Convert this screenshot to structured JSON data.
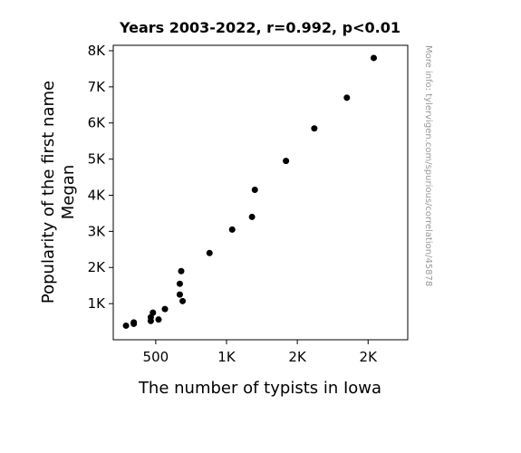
{
  "chart_data": {
    "type": "scatter",
    "title": "Years 2003-2022, r=0.992, p<0.01",
    "xlabel": "The number of typists in Iowa",
    "ylabel_lines": [
      "Popularity of the first name",
      "Megan"
    ],
    "xlim": [
      200,
      2280
    ],
    "ylim": [
      0,
      8150
    ],
    "x_ticks": [
      {
        "value": 500,
        "label": "500"
      },
      {
        "value": 1000,
        "label": "1K"
      },
      {
        "value": 1500,
        "label": "2K"
      },
      {
        "value": 2000,
        "label": "2K"
      }
    ],
    "y_ticks": [
      {
        "value": 1000,
        "label": "1K"
      },
      {
        "value": 2000,
        "label": "2K"
      },
      {
        "value": 3000,
        "label": "3K"
      },
      {
        "value": 4000,
        "label": "4K"
      },
      {
        "value": 5000,
        "label": "5K"
      },
      {
        "value": 6000,
        "label": "6K"
      },
      {
        "value": 7000,
        "label": "7K"
      },
      {
        "value": 8000,
        "label": "8K"
      }
    ],
    "points": [
      {
        "x": 290,
        "y": 390
      },
      {
        "x": 345,
        "y": 440
      },
      {
        "x": 345,
        "y": 480
      },
      {
        "x": 465,
        "y": 520
      },
      {
        "x": 465,
        "y": 620
      },
      {
        "x": 480,
        "y": 750
      },
      {
        "x": 520,
        "y": 560
      },
      {
        "x": 565,
        "y": 850
      },
      {
        "x": 670,
        "y": 1250
      },
      {
        "x": 670,
        "y": 1550
      },
      {
        "x": 680,
        "y": 1900
      },
      {
        "x": 690,
        "y": 1070
      },
      {
        "x": 880,
        "y": 2400
      },
      {
        "x": 1040,
        "y": 3050
      },
      {
        "x": 1180,
        "y": 3400
      },
      {
        "x": 1200,
        "y": 4150
      },
      {
        "x": 1420,
        "y": 4950
      },
      {
        "x": 1620,
        "y": 5850
      },
      {
        "x": 1850,
        "y": 6700
      },
      {
        "x": 2040,
        "y": 7800
      }
    ],
    "marker_color": "#000000",
    "grid": false
  },
  "watermark": "More info: tylervigen.com/spurious/correlation/45878"
}
